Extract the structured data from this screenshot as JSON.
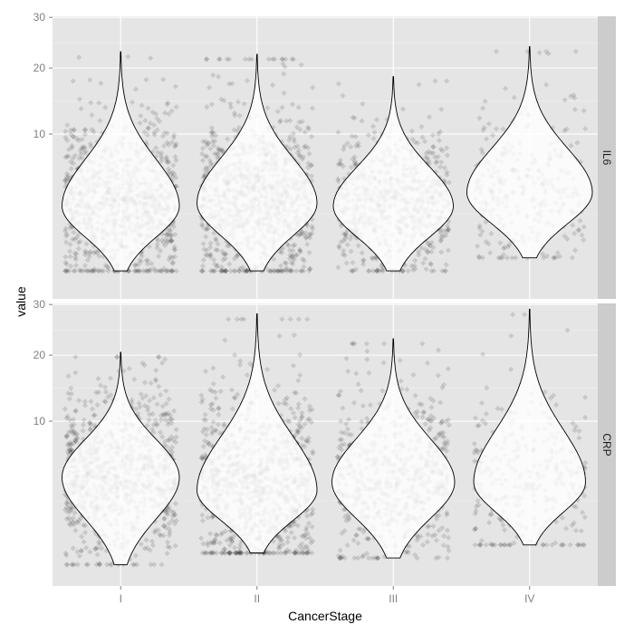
{
  "chart_data": {
    "type": "violin",
    "xlabel": "CancerStage",
    "ylabel": "value",
    "categories": [
      "I",
      "II",
      "III",
      "IV"
    ],
    "y_scale": "sqrt",
    "ylim": [
      0,
      30
    ],
    "yticks": [
      10,
      20,
      30
    ],
    "grid": true,
    "points": "jittered raw observations, low alpha, drawn behind violins",
    "colors": {
      "panel_bg": "#e5e5e5",
      "grid_major": "#ffffff",
      "strip_bg": "#cccccc",
      "violin_fill": "#ffffff",
      "violin_outline": "#000000",
      "point": "#000000"
    },
    "facets": [
      {
        "label": "IL6",
        "groups": [
          {
            "category": "I",
            "n_points": 900,
            "min": 0.2,
            "mode": 3.0,
            "max": 23.0,
            "max_width": 0.86
          },
          {
            "category": "II",
            "n_points": 950,
            "min": 0.2,
            "mode": 3.2,
            "max": 22.5,
            "max_width": 0.88
          },
          {
            "category": "III",
            "n_points": 650,
            "min": 0.2,
            "mode": 3.0,
            "max": 18.5,
            "max_width": 0.88
          },
          {
            "category": "IV",
            "n_points": 300,
            "min": 0.5,
            "mode": 4.0,
            "max": 24.0,
            "max_width": 0.92
          }
        ]
      },
      {
        "label": "CRP",
        "groups": [
          {
            "category": "I",
            "n_points": 850,
            "min": 0.1,
            "mode": 4.2,
            "max": 20.5,
            "max_width": 0.86
          },
          {
            "category": "II",
            "n_points": 900,
            "min": 0.3,
            "mode": 3.2,
            "max": 28.0,
            "max_width": 0.88
          },
          {
            "category": "III",
            "n_points": 600,
            "min": 0.2,
            "mode": 3.8,
            "max": 23.0,
            "max_width": 0.9
          },
          {
            "category": "IV",
            "n_points": 300,
            "min": 0.5,
            "mode": 3.8,
            "max": 29.0,
            "max_width": 0.82
          }
        ]
      }
    ]
  }
}
